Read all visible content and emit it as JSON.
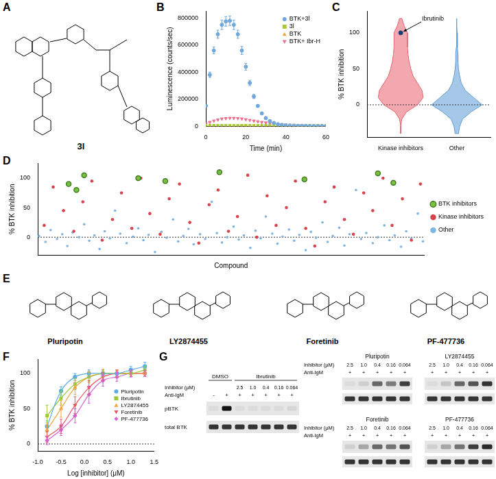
{
  "panels": {
    "A": {
      "letter": "A",
      "compound": "3l"
    },
    "E": {
      "letter": "E",
      "compounds": [
        "Pluripotin",
        "LY2874455",
        "Foretinib",
        "PF-477736"
      ]
    },
    "G": {
      "letter": "G",
      "row_labels": {
        "inhibitor": "Inhibitor (μM)",
        "anti_igm": "Anti-IgM",
        "pbtk": "pBTK",
        "total_btk": "total BTK"
      },
      "control": {
        "header": "DMSO",
        "anti_igm": [
          "-",
          "+"
        ],
        "pbtk": [
          0.05,
          1.0
        ],
        "total_btk": [
          0.85,
          0.85
        ]
      },
      "blots": [
        {
          "name": "Ibrutinib",
          "concentrations": [
            "2.5",
            "1.0",
            "0.4",
            "0.16",
            "0.064"
          ],
          "anti_igm": [
            "+",
            "+",
            "+",
            "+",
            "+"
          ],
          "pbtk": [
            0.05,
            0.05,
            0.05,
            0.05,
            0.08
          ],
          "total_btk": [
            0.85,
            0.85,
            0.85,
            0.85,
            0.85
          ]
        },
        {
          "name": "Pluripotin",
          "concentrations": [
            "2.5",
            "1.0",
            "0.4",
            "0.16",
            "0.064"
          ],
          "anti_igm": [
            "+",
            "+",
            "+",
            "+",
            "+"
          ],
          "pbtk": [
            0.05,
            0.1,
            0.6,
            0.5,
            0.8
          ],
          "total_btk": [
            0.85,
            0.85,
            0.85,
            0.85,
            0.85
          ]
        },
        {
          "name": "LY2874455",
          "concentrations": [
            "2.5",
            "1.0",
            "0.4",
            "0.16",
            "0.064"
          ],
          "anti_igm": [
            "+",
            "+",
            "+",
            "+",
            "+"
          ],
          "pbtk": [
            0.05,
            0.15,
            0.6,
            0.7,
            0.85
          ],
          "total_btk": [
            0.85,
            0.85,
            0.85,
            0.85,
            0.85
          ]
        },
        {
          "name": "Foretinib",
          "concentrations": [
            "2.5",
            "1.0",
            "0.4",
            "0.16",
            "0.064"
          ],
          "anti_igm": [
            "+",
            "+",
            "+",
            "+",
            "+"
          ],
          "pbtk": [
            0.1,
            0.3,
            0.6,
            0.55,
            0.7
          ],
          "total_btk": [
            0.85,
            0.85,
            0.85,
            0.85,
            0.85
          ]
        },
        {
          "name": "PF-477736",
          "concentrations": [
            "2.5",
            "1.0",
            "0.4",
            "0.16",
            "0.064"
          ],
          "anti_igm": [
            "+",
            "+",
            "+",
            "+",
            "+"
          ],
          "pbtk": [
            0.1,
            0.3,
            0.55,
            0.8,
            0.9
          ],
          "total_btk": [
            0.85,
            0.85,
            0.85,
            0.85,
            0.85
          ]
        }
      ]
    }
  },
  "chart_data": [
    {
      "panel": "B",
      "type": "scatter",
      "x_label": "Time (min)",
      "y_label": "Luminescence (counts/sec)",
      "x": [
        0,
        2,
        4,
        6,
        8,
        10,
        12,
        14,
        16,
        18,
        20,
        22,
        24,
        26,
        28,
        30,
        32,
        34,
        36,
        38,
        40,
        42,
        44,
        46,
        48,
        50,
        52,
        54,
        56,
        58,
        60
      ],
      "series": [
        {
          "name": "BTK+3l",
          "color": "#6fa8dc",
          "marker": "circle",
          "values": [
            150000,
            380000,
            560000,
            680000,
            750000,
            775000,
            780000,
            750000,
            680000,
            560000,
            440000,
            320000,
            220000,
            150000,
            95000,
            60000,
            38000,
            24000,
            15000,
            10000,
            7000,
            5000,
            4000,
            3000,
            2500,
            2000,
            1500,
            1200,
            1000,
            1000,
            1000
          ],
          "errors": [
            10000,
            20000,
            25000,
            30000,
            35000,
            35000,
            35000,
            35000,
            30000,
            30000,
            25000,
            20000,
            15000,
            10000,
            8000,
            6000,
            4000,
            3000,
            2000,
            2000,
            1000,
            1000,
            1000,
            1000,
            1000,
            1000,
            1000,
            1000,
            1000,
            1000,
            1000
          ]
        },
        {
          "name": "3l",
          "color": "#a6c93a",
          "marker": "square",
          "values": [
            5000,
            5000,
            5000,
            5000,
            5000,
            5000,
            5000,
            5000,
            5000,
            5000,
            5000,
            5000,
            5000,
            5000,
            5000,
            5000,
            5000,
            5000,
            5000,
            5000,
            5000,
            5000,
            5000,
            5000,
            5000,
            5000,
            5000,
            5000,
            5000,
            5000,
            5000
          ]
        },
        {
          "name": "BTK",
          "color": "#f0a23b",
          "marker": "triangle",
          "values": [
            3000,
            3000,
            3000,
            3000,
            3000,
            3000,
            3000,
            3000,
            3000,
            3000,
            3000,
            3000,
            3000,
            3000,
            3000,
            3000,
            3000,
            3000,
            3000,
            3000,
            3000,
            3000,
            3000,
            3000,
            3000,
            3000,
            3000,
            3000,
            3000,
            3000,
            3000
          ]
        },
        {
          "name": "BTK+ Ibr-H",
          "color": "#ef6f8f",
          "marker": "triangle-down",
          "values": [
            20000,
            30000,
            40000,
            48000,
            55000,
            58000,
            60000,
            60000,
            58000,
            55000,
            50000,
            45000,
            40000,
            35000,
            30000,
            26000,
            22000,
            19000,
            16000,
            13000,
            11000,
            9000,
            8000,
            7000,
            6000,
            5000,
            4000,
            3500,
            3000,
            2500,
            2000
          ]
        }
      ],
      "xlim": [
        0,
        60
      ],
      "xticks": [
        0,
        20,
        40,
        60
      ],
      "ylim": [
        0,
        850000
      ],
      "yticks": [
        0,
        200000,
        400000,
        600000,
        800000
      ],
      "legend": "upper right",
      "grid": false
    },
    {
      "panel": "C",
      "type": "violin",
      "y_label": "% BTK inhibition",
      "categories": [
        "Kinase inhibitors",
        "Other"
      ],
      "y_levels": [
        -40,
        -30,
        -20,
        -10,
        0,
        10,
        20,
        30,
        40,
        50,
        60,
        70,
        80,
        90,
        100,
        110,
        120
      ],
      "series": [
        {
          "name": "Kinase inhibitors",
          "color": "#e8616b",
          "half_widths": [
            0,
            0,
            0.02,
            0.1,
            0.3,
            0.4,
            0.38,
            0.3,
            0.22,
            0.18,
            0.15,
            0.13,
            0.12,
            0.12,
            0.12,
            0.06,
            0.02
          ]
        },
        {
          "name": "Other",
          "color": "#5b9bd5",
          "half_widths": [
            0.03,
            0.05,
            0.1,
            0.25,
            0.45,
            0.3,
            0.15,
            0.08,
            0.05,
            0.03,
            0.02,
            0.02,
            0.01,
            0.01,
            0.005,
            0,
            0
          ]
        }
      ],
      "ylim": [
        -45,
        130
      ],
      "yticks": [
        0,
        50,
        100
      ],
      "reference_y": 0,
      "annotations": [
        {
          "text": "Ibrutinib",
          "category": "Kinase inhibitors",
          "y": 100
        }
      ],
      "grid": false
    },
    {
      "panel": "D",
      "type": "scatter",
      "x_label": "Compound",
      "y_label": "% BTK inhibition",
      "series": [
        {
          "name": "BTK inhibitors",
          "color": "#7ac143",
          "marker": "circle",
          "x": [
            240,
            300,
            360,
            780,
            990,
            1410,
            2070,
            2640,
            2760
          ],
          "values": [
            90,
            80,
            105,
            100,
            95,
            110,
            98,
            108,
            92
          ]
        },
        {
          "name": "Kinase inhibitors",
          "color": "#d9424c",
          "marker": "circle",
          "x": [
            50,
            120,
            200,
            280,
            350,
            420,
            500,
            580,
            650,
            730,
            800,
            870,
            950,
            1020,
            1100,
            1180,
            1250,
            1330,
            1400,
            1480,
            1550,
            1630,
            1700,
            1780,
            1850,
            1930,
            2000,
            2080,
            2150,
            2230,
            2300,
            2380,
            2450,
            2530,
            2600,
            2680,
            2750,
            2830,
            2900,
            2970
          ],
          "values": [
            20,
            85,
            45,
            10,
            60,
            95,
            -5,
            30,
            75,
            15,
            100,
            40,
            5,
            65,
            90,
            25,
            -10,
            55,
            80,
            10,
            35,
            105,
            0,
            70,
            20,
            50,
            95,
            15,
            -15,
            60,
            85,
            30,
            5,
            75,
            45,
            100,
            20,
            65,
            -5,
            90
          ]
        },
        {
          "name": "Other",
          "color": "#7fb3e0",
          "marker": "circle",
          "x": [
            10,
            60,
            100,
            150,
            190,
            230,
            270,
            320,
            360,
            400,
            440,
            480,
            520,
            560,
            600,
            640,
            690,
            740,
            780,
            820,
            860,
            910,
            960,
            1000,
            1050,
            1090,
            1130,
            1170,
            1210,
            1260,
            1300,
            1350,
            1390,
            1430,
            1470,
            1520,
            1560,
            1600,
            1650,
            1690,
            1730,
            1770,
            1820,
            1860,
            1900,
            1950,
            1990,
            2030,
            2080,
            2120,
            2160,
            2210,
            2250,
            2290,
            2340,
            2380,
            2420,
            2470,
            2510,
            2550,
            2600,
            2640,
            2690,
            2730,
            2770,
            2820,
            2860,
            2900,
            2950,
            2990
          ],
          "values": [
            2,
            -8,
            12,
            -3,
            5,
            -15,
            8,
            0,
            22,
            -6,
            3,
            -20,
            10,
            -2,
            45,
            6,
            -10,
            1,
            15,
            -5,
            4,
            -25,
            9,
            -1,
            30,
            -7,
            2,
            14,
            -12,
            5,
            -3,
            60,
            7,
            -9,
            0,
            18,
            -4,
            3,
            -18,
            11,
            -2,
            35,
            6,
            -11,
            1,
            13,
            -6,
            4,
            -22,
            9,
            -1,
            25,
            -8,
            2,
            16,
            -14,
            5,
            80,
            -3,
            7,
            -10,
            0,
            20,
            -5,
            3,
            -16,
            10,
            -2,
            40,
            -7
          ]
        }
      ],
      "xlim": [
        0,
        3000
      ],
      "ylim": [
        -30,
        125
      ],
      "yticks": [
        0,
        50,
        100
      ],
      "tick_labels": "y",
      "reference_y": 0,
      "legend": "right",
      "grid": false
    },
    {
      "panel": "F",
      "type": "line",
      "x_label": "Log [inhibitor] (μM)",
      "y_label": "% BTK inhibition",
      "x": [
        -0.8,
        -0.5,
        -0.2,
        0.1,
        0.4,
        0.7,
        1.0,
        1.3
      ],
      "series": [
        {
          "name": "Pluripotin",
          "color": "#5aaee0",
          "marker": "circle",
          "values": [
            25,
            75,
            95,
            100,
            100,
            100,
            105,
            110
          ],
          "errors": [
            8,
            6,
            5,
            5,
            4,
            4,
            5,
            6
          ]
        },
        {
          "name": "Ibrutinib",
          "color": "#9bc83a",
          "marker": "square",
          "values": [
            40,
            65,
            85,
            95,
            100,
            100,
            100,
            105
          ],
          "errors": [
            15,
            10,
            8,
            6,
            5,
            4,
            4,
            5
          ]
        },
        {
          "name": "LY2874455",
          "color": "#f5a33b",
          "marker": "triangle",
          "values": [
            20,
            50,
            80,
            95,
            100,
            100,
            100,
            100
          ],
          "errors": [
            10,
            12,
            10,
            8,
            6,
            5,
            4,
            4
          ]
        },
        {
          "name": "Foretinib",
          "color": "#e8545e",
          "marker": "triangle-down",
          "values": [
            10,
            25,
            55,
            80,
            95,
            100,
            100,
            100
          ],
          "errors": [
            8,
            10,
            12,
            10,
            6,
            5,
            4,
            4
          ]
        },
        {
          "name": "PF-477736",
          "color": "#d65fd6",
          "marker": "diamond",
          "values": [
            5,
            20,
            40,
            70,
            90,
            95,
            100,
            100
          ],
          "errors": [
            6,
            8,
            10,
            12,
            8,
            6,
            5,
            4
          ]
        }
      ],
      "xlim": [
        -1,
        1.5
      ],
      "xticks": [
        {
          "value": -1,
          "label": "-1.0"
        },
        {
          "value": -0.5,
          "label": "-0.5"
        },
        {
          "value": 0,
          "label": "0.0"
        },
        {
          "value": 0.5,
          "label": "0.5"
        },
        {
          "value": 1,
          "label": "1.0"
        },
        {
          "value": 1.5,
          "label": "1.5"
        }
      ],
      "ylim": [
        -10,
        120
      ],
      "yticks": [
        0,
        50,
        100
      ],
      "reference_y": 0,
      "legend": "center right",
      "grid": false
    }
  ]
}
